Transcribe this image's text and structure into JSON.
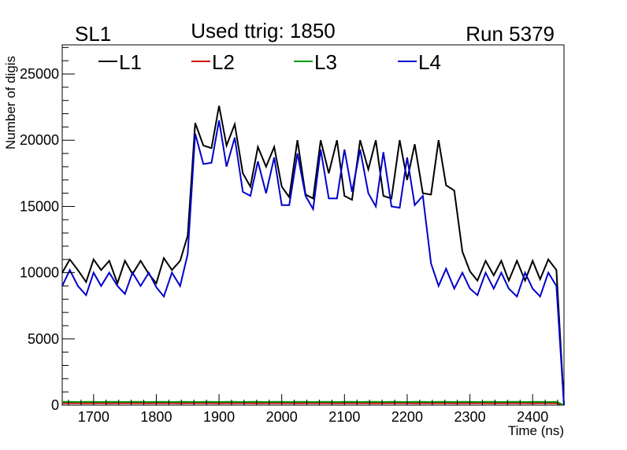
{
  "chart_data": {
    "type": "line",
    "title": "Used ttrig: 1850",
    "title_left": "SL1",
    "title_right": "Run 5379",
    "xlabel": "Time (ns)",
    "ylabel": "Number of digis",
    "xlim": [
      1650,
      2450
    ],
    "ylim": [
      0,
      27200
    ],
    "x_ticks": [
      1700,
      1800,
      1900,
      2000,
      2100,
      2200,
      2300,
      2400
    ],
    "x_tick_labels": [
      "1700",
      "1800",
      "1900",
      "2000",
      "2100",
      "2200",
      "2300",
      "2400"
    ],
    "y_ticks": [
      0,
      5000,
      10000,
      15000,
      20000,
      25000
    ],
    "y_tick_labels": [
      "0",
      "5000",
      "10000",
      "15000",
      "20000",
      "25000"
    ],
    "x": [
      1650,
      1662,
      1675,
      1688,
      1700,
      1712,
      1725,
      1738,
      1750,
      1762,
      1775,
      1788,
      1800,
      1812,
      1825,
      1838,
      1850,
      1862,
      1875,
      1888,
      1900,
      1912,
      1925,
      1938,
      1950,
      1962,
      1975,
      1988,
      2000,
      2012,
      2025,
      2038,
      2050,
      2062,
      2075,
      2088,
      2100,
      2112,
      2125,
      2138,
      2150,
      2162,
      2175,
      2188,
      2200,
      2212,
      2225,
      2238,
      2250,
      2262,
      2275,
      2288,
      2300,
      2312,
      2325,
      2338,
      2350,
      2362,
      2375,
      2388,
      2400,
      2412,
      2425,
      2438,
      2450
    ],
    "series": [
      {
        "name": "L1",
        "color": "#000000",
        "values": [
          10000,
          11000,
          10200,
          9300,
          11000,
          10200,
          10900,
          9200,
          10900,
          9900,
          10900,
          9900,
          9200,
          11100,
          10200,
          10900,
          12800,
          21300,
          19600,
          19400,
          22600,
          19600,
          21200,
          17500,
          16500,
          19500,
          18000,
          19500,
          16500,
          15700,
          20000,
          15900,
          15600,
          20000,
          17500,
          20000,
          15800,
          15500,
          20000,
          17800,
          20000,
          15800,
          15600,
          20000,
          17000,
          19700,
          16000,
          15900,
          20000,
          16600,
          16200,
          11600,
          10100,
          9400,
          10900,
          9800,
          10900,
          9400,
          10900,
          9400,
          10900,
          9500,
          11000,
          10200,
          0
        ],
        "values_note": "L1 estimated from plot"
      },
      {
        "name": "L2",
        "color": "#cc0000",
        "values": [
          150,
          150,
          150,
          140,
          150,
          150,
          140,
          150,
          150,
          150,
          150,
          140,
          150,
          150,
          150,
          140,
          150,
          150,
          150,
          150,
          140,
          150,
          150,
          150,
          150,
          140,
          150,
          150,
          150,
          150,
          140,
          150,
          150,
          150,
          150,
          140,
          150,
          150,
          150,
          150,
          140,
          150,
          150,
          150,
          150,
          140,
          150,
          150,
          150,
          150,
          140,
          150,
          150,
          150,
          150,
          140,
          150,
          150,
          150,
          150,
          140,
          150,
          150,
          150,
          0
        ]
      },
      {
        "name": "L3",
        "color": "#009900",
        "values": [
          250,
          250,
          240,
          250,
          250,
          240,
          250,
          250,
          240,
          250,
          250,
          240,
          250,
          250,
          240,
          250,
          250,
          240,
          250,
          250,
          240,
          250,
          250,
          240,
          250,
          250,
          240,
          250,
          250,
          240,
          250,
          250,
          240,
          250,
          250,
          240,
          250,
          250,
          240,
          250,
          250,
          240,
          250,
          250,
          240,
          250,
          250,
          240,
          250,
          250,
          240,
          250,
          250,
          240,
          250,
          250,
          240,
          250,
          250,
          240,
          250,
          250,
          240,
          250,
          0
        ]
      },
      {
        "name": "L4",
        "color": "#0000cc",
        "values": [
          9000,
          10200,
          9000,
          8300,
          10000,
          9000,
          10000,
          9000,
          8400,
          10000,
          9000,
          10000,
          8900,
          8200,
          10000,
          9000,
          11400,
          20500,
          18200,
          18300,
          21500,
          18000,
          20200,
          16100,
          15800,
          18400,
          16000,
          18700,
          15100,
          15100,
          19000,
          15800,
          14800,
          19300,
          15600,
          15600,
          19300,
          16100,
          19300,
          16000,
          15000,
          19100,
          15000,
          14900,
          18700,
          15100,
          15800,
          10700,
          9000,
          10300,
          8800,
          10000,
          8800,
          8300,
          10000,
          8800,
          10000,
          8800,
          8200,
          10000,
          8800,
          8200,
          10000,
          9000,
          0
        ]
      }
    ],
    "legend": [
      "L1",
      "L2",
      "L3",
      "L4"
    ],
    "legend_placement": "top"
  }
}
